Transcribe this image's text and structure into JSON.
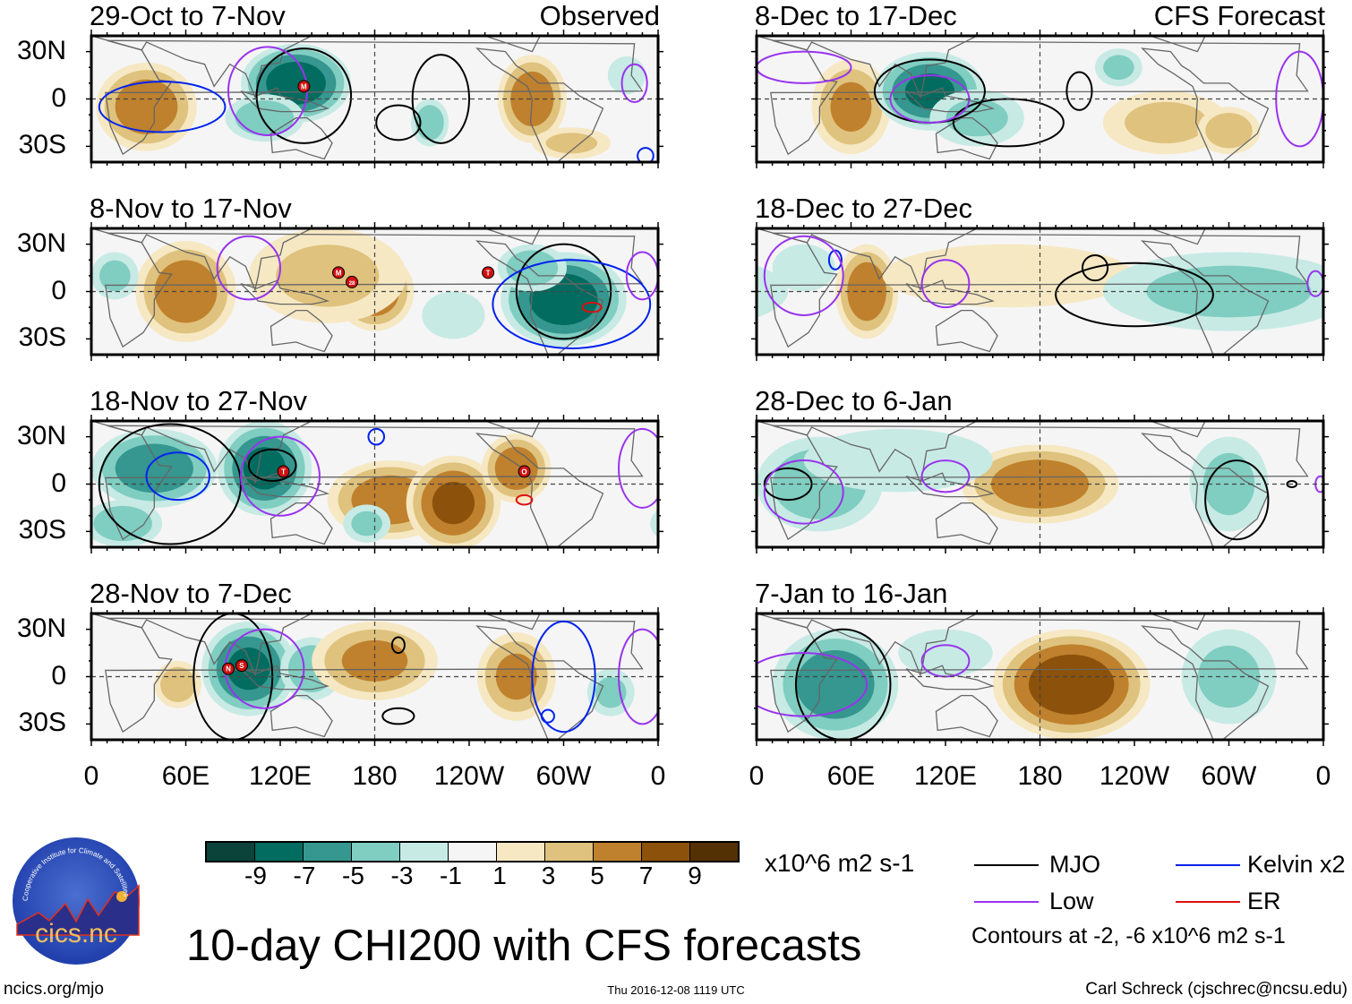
{
  "column_labels": {
    "left": "Observed",
    "right": "CFS Forecast"
  },
  "y_axis_labels": [
    "30N",
    "0",
    "30S"
  ],
  "x_axis_labels": [
    "0",
    "60E",
    "120E",
    "180",
    "120W",
    "60W",
    "0"
  ],
  "panels": [
    {
      "title": "29-Oct to 7-Nov",
      "source": "Observed",
      "anomalies": [
        {
          "lon": 130,
          "lat": 10,
          "rlon": 35,
          "rlat": 25,
          "v": -8
        },
        {
          "lon": 110,
          "lat": -12,
          "rlon": 25,
          "rlat": 15,
          "v": -4
        },
        {
          "lon": 35,
          "lat": -5,
          "rlon": 32,
          "rlat": 28,
          "v": 6
        },
        {
          "lon": 280,
          "lat": 0,
          "rlon": 22,
          "rlat": 28,
          "v": 6
        },
        {
          "lon": 215,
          "lat": -15,
          "rlon": 12,
          "rlat": 15,
          "v": -4
        },
        {
          "lon": 305,
          "lat": -28,
          "rlon": 25,
          "rlat": 10,
          "v": 3
        },
        {
          "lon": 340,
          "lat": 15,
          "rlon": 12,
          "rlat": 12,
          "v": -2
        }
      ],
      "contours": [
        {
          "type": "MJO",
          "lon": 135,
          "lat": 2,
          "rlon": 30,
          "rlat": 30
        },
        {
          "type": "MJO",
          "lon": 195,
          "lat": -15,
          "rlon": 14,
          "rlat": 11
        },
        {
          "type": "MJO",
          "lon": 222,
          "lat": 0,
          "rlon": 18,
          "rlat": 28
        },
        {
          "type": "Kelvin",
          "lon": 45,
          "lat": -5,
          "rlon": 40,
          "rlat": 16
        },
        {
          "type": "Low",
          "lon": 112,
          "lat": 5,
          "rlon": 25,
          "rlat": 28
        },
        {
          "type": "Low",
          "lon": 345,
          "lat": 10,
          "rlon": 8,
          "rlat": 12
        },
        {
          "type": "Kelvin",
          "lon": 352,
          "lat": -36,
          "rlon": 5,
          "rlat": 5
        }
      ],
      "storms": [
        {
          "label": "M",
          "lon": 135,
          "lat": 8
        }
      ]
    },
    {
      "title": "8-Nov to 17-Nov",
      "source": "Observed",
      "anomalies": [
        {
          "lon": 60,
          "lat": 0,
          "rlon": 32,
          "rlat": 32,
          "v": 6
        },
        {
          "lon": 180,
          "lat": 0,
          "rlon": 25,
          "rlat": 25,
          "v": 6
        },
        {
          "lon": 150,
          "lat": 10,
          "rlon": 50,
          "rlat": 30,
          "v": 3
        },
        {
          "lon": 300,
          "lat": -5,
          "rlon": 40,
          "rlat": 30,
          "v": -8
        },
        {
          "lon": 280,
          "lat": 15,
          "rlon": 22,
          "rlat": 15,
          "v": -4
        },
        {
          "lon": 15,
          "lat": 10,
          "rlon": 15,
          "rlat": 15,
          "v": -3
        },
        {
          "lon": 230,
          "lat": -15,
          "rlon": 20,
          "rlat": 15,
          "v": -2
        }
      ],
      "contours": [
        {
          "type": "MJO",
          "lon": 300,
          "lat": 0,
          "rlon": 30,
          "rlat": 30
        },
        {
          "type": "Kelvin",
          "lon": 305,
          "lat": -8,
          "rlon": 50,
          "rlat": 28
        },
        {
          "type": "Low",
          "lon": 100,
          "lat": 15,
          "rlon": 20,
          "rlat": 20
        },
        {
          "type": "Low",
          "lon": 350,
          "lat": 10,
          "rlon": 10,
          "rlat": 15
        },
        {
          "type": "ER",
          "lon": 318,
          "lat": -10,
          "rlon": 6,
          "rlat": 3
        }
      ],
      "storms": [
        {
          "label": "M",
          "lon": 157,
          "lat": 12
        },
        {
          "label": "28",
          "lon": 163,
          "lat": 6
        },
        {
          "label": "T",
          "lon": 252,
          "lat": 12
        }
      ]
    },
    {
      "title": "18-Nov to 27-Nov",
      "source": "Observed",
      "anomalies": [
        {
          "lon": 40,
          "lat": 10,
          "rlon": 40,
          "rlat": 25,
          "v": -6
        },
        {
          "lon": 110,
          "lat": 10,
          "rlon": 30,
          "rlat": 30,
          "v": -7
        },
        {
          "lon": 190,
          "lat": -10,
          "rlon": 40,
          "rlat": 25,
          "v": 6
        },
        {
          "lon": 230,
          "lat": -12,
          "rlon": 30,
          "rlat": 30,
          "v": 7
        },
        {
          "lon": 270,
          "lat": 10,
          "rlon": 22,
          "rlat": 22,
          "v": 6
        },
        {
          "lon": 175,
          "lat": -25,
          "rlon": 15,
          "rlat": 12,
          "v": -3
        },
        {
          "lon": 20,
          "lat": -25,
          "rlon": 25,
          "rlat": 15,
          "v": -4
        }
      ],
      "contours": [
        {
          "type": "MJO",
          "lon": 50,
          "lat": 0,
          "rlon": 45,
          "rlat": 38
        },
        {
          "type": "MJO",
          "lon": 115,
          "lat": 12,
          "rlon": 15,
          "rlat": 10
        },
        {
          "type": "Kelvin",
          "lon": 55,
          "lat": 5,
          "rlon": 20,
          "rlat": 15
        },
        {
          "type": "Kelvin",
          "lon": 181,
          "lat": 30,
          "rlon": 5,
          "rlat": 5
        },
        {
          "type": "Low",
          "lon": 120,
          "lat": 5,
          "rlon": 25,
          "rlat": 25
        },
        {
          "type": "Low",
          "lon": 350,
          "lat": 10,
          "rlon": 15,
          "rlat": 25
        },
        {
          "type": "ER",
          "lon": 275,
          "lat": -10,
          "rlon": 5,
          "rlat": 3
        }
      ],
      "storms": [
        {
          "label": "T",
          "lon": 122,
          "lat": 8
        },
        {
          "label": "O",
          "lon": 275,
          "lat": 8
        }
      ]
    },
    {
      "title": "28-Nov to 7-Dec",
      "source": "Observed",
      "anomalies": [
        {
          "lon": 100,
          "lat": 5,
          "rlon": 30,
          "rlat": 30,
          "v": -7
        },
        {
          "lon": 140,
          "lat": 5,
          "rlon": 20,
          "rlat": 20,
          "v": -4
        },
        {
          "lon": 180,
          "lat": 10,
          "rlon": 40,
          "rlat": 25,
          "v": 5
        },
        {
          "lon": 270,
          "lat": 0,
          "rlon": 25,
          "rlat": 28,
          "v": 5
        },
        {
          "lon": 55,
          "lat": -5,
          "rlon": 15,
          "rlat": 15,
          "v": 4
        },
        {
          "lon": 330,
          "lat": -10,
          "rlon": 15,
          "rlat": 15,
          "v": -3
        }
      ],
      "contours": [
        {
          "type": "MJO",
          "lon": 90,
          "lat": 0,
          "rlon": 25,
          "rlat": 40
        },
        {
          "type": "MJO",
          "lon": 195,
          "lat": -25,
          "rlon": 10,
          "rlat": 5
        },
        {
          "type": "MJO",
          "lon": 195,
          "lat": 20,
          "rlon": 4,
          "rlat": 5
        },
        {
          "type": "Kelvin",
          "lon": 300,
          "lat": 0,
          "rlon": 20,
          "rlat": 35
        },
        {
          "type": "Kelvin",
          "lon": 290,
          "lat": -25,
          "rlon": 4,
          "rlat": 4
        },
        {
          "type": "Low",
          "lon": 110,
          "lat": 5,
          "rlon": 25,
          "rlat": 25
        },
        {
          "type": "Low",
          "lon": 350,
          "lat": 0,
          "rlon": 15,
          "rlat": 30
        }
      ],
      "storms": [
        {
          "label": "N",
          "lon": 87,
          "lat": 5
        },
        {
          "label": "S",
          "lon": 92,
          "lat": 7
        }
      ]
    },
    {
      "title": "8-Dec to 17-Dec",
      "source": "CFS Forecast",
      "anomalies": [
        {
          "lon": 60,
          "lat": -5,
          "rlon": 25,
          "rlat": 30,
          "v": 5
        },
        {
          "lon": 110,
          "lat": 5,
          "rlon": 35,
          "rlat": 25,
          "v": -7
        },
        {
          "lon": 140,
          "lat": -12,
          "rlon": 30,
          "rlat": 18,
          "v": -3
        },
        {
          "lon": 260,
          "lat": -15,
          "rlon": 40,
          "rlat": 20,
          "v": 3
        },
        {
          "lon": 300,
          "lat": -20,
          "rlon": 20,
          "rlat": 15,
          "v": 4
        },
        {
          "lon": 230,
          "lat": 20,
          "rlon": 15,
          "rlat": 12,
          "v": -3
        }
      ],
      "contours": [
        {
          "type": "MJO",
          "lon": 110,
          "lat": 5,
          "rlon": 35,
          "rlat": 20
        },
        {
          "type": "MJO",
          "lon": 160,
          "lat": -15,
          "rlon": 35,
          "rlat": 15
        },
        {
          "type": "MJO",
          "lon": 205,
          "lat": 5,
          "rlon": 8,
          "rlat": 12
        },
        {
          "type": "Low",
          "lon": 110,
          "lat": 0,
          "rlon": 25,
          "rlat": 15
        },
        {
          "type": "Low",
          "lon": 345,
          "lat": 0,
          "rlon": 15,
          "rlat": 30
        },
        {
          "type": "Low",
          "lon": 30,
          "lat": 20,
          "rlon": 30,
          "rlat": 10
        }
      ],
      "storms": []
    },
    {
      "title": "18-Dec to 27-Dec",
      "source": "CFS Forecast",
      "anomalies": [
        {
          "lon": 70,
          "lat": 0,
          "rlon": 20,
          "rlat": 30,
          "v": 6
        },
        {
          "lon": 160,
          "lat": 10,
          "rlon": 80,
          "rlat": 20,
          "v": 2
        },
        {
          "lon": 300,
          "lat": 0,
          "rlon": 80,
          "rlat": 25,
          "v": -3
        },
        {
          "lon": 30,
          "lat": 15,
          "rlon": 20,
          "rlat": 15,
          "v": -2
        }
      ],
      "contours": [
        {
          "type": "MJO",
          "lon": 240,
          "lat": -2,
          "rlon": 50,
          "rlat": 20
        },
        {
          "type": "MJO",
          "lon": 215,
          "lat": 15,
          "rlon": 8,
          "rlat": 8
        },
        {
          "type": "Kelvin",
          "lon": 50,
          "lat": 20,
          "rlon": 4,
          "rlat": 6
        },
        {
          "type": "Low",
          "lon": 120,
          "lat": 5,
          "rlon": 15,
          "rlat": 15
        },
        {
          "type": "Low",
          "lon": 30,
          "lat": 10,
          "rlon": 25,
          "rlat": 25
        },
        {
          "type": "Low",
          "lon": 355,
          "lat": 5,
          "rlon": 5,
          "rlat": 8
        }
      ],
      "storms": []
    },
    {
      "title": "28-Dec to 6-Jan",
      "source": "CFS Forecast",
      "anomalies": [
        {
          "lon": 180,
          "lat": 0,
          "rlon": 50,
          "rlat": 25,
          "v": 6
        },
        {
          "lon": 40,
          "lat": 0,
          "rlon": 40,
          "rlat": 30,
          "v": -4
        },
        {
          "lon": 300,
          "lat": 0,
          "rlon": 25,
          "rlat": 30,
          "v": -3
        },
        {
          "lon": 90,
          "lat": 15,
          "rlon": 60,
          "rlat": 20,
          "v": -2
        }
      ],
      "contours": [
        {
          "type": "MJO",
          "lon": 20,
          "lat": 0,
          "rlon": 15,
          "rlat": 10
        },
        {
          "type": "MJO",
          "lon": 305,
          "lat": -10,
          "rlon": 20,
          "rlat": 25
        },
        {
          "type": "MJO",
          "lon": 340,
          "lat": 0,
          "rlon": 3,
          "rlat": 2
        },
        {
          "type": "Low",
          "lon": 120,
          "lat": 5,
          "rlon": 15,
          "rlat": 10
        },
        {
          "type": "Low",
          "lon": 30,
          "lat": -5,
          "rlon": 25,
          "rlat": 20
        },
        {
          "type": "Low",
          "lon": 358,
          "lat": 0,
          "rlon": 3,
          "rlat": 5
        }
      ],
      "storms": []
    },
    {
      "title": "7-Jan to 16-Jan",
      "source": "CFS Forecast",
      "anomalies": [
        {
          "lon": 200,
          "lat": -5,
          "rlon": 50,
          "rlat": 35,
          "v": 8
        },
        {
          "lon": 50,
          "lat": -5,
          "rlon": 40,
          "rlat": 35,
          "v": -6
        },
        {
          "lon": 300,
          "lat": 0,
          "rlon": 30,
          "rlat": 30,
          "v": -3
        },
        {
          "lon": 120,
          "lat": 15,
          "rlon": 30,
          "rlat": 15,
          "v": -2
        }
      ],
      "contours": [
        {
          "type": "MJO",
          "lon": 55,
          "lat": -5,
          "rlon": 30,
          "rlat": 35
        },
        {
          "type": "Low",
          "lon": 120,
          "lat": 10,
          "rlon": 15,
          "rlat": 10
        },
        {
          "type": "Low",
          "lon": 30,
          "lat": -5,
          "rlon": 40,
          "rlat": 20
        }
      ],
      "storms": []
    }
  ],
  "colorbar": {
    "colors": [
      "#0b433b",
      "#016c5f",
      "#35978f",
      "#80cdc1",
      "#c7eae5",
      "#f5f5f5",
      "#f6e8c3",
      "#dfc27d",
      "#bf812d",
      "#8c510a",
      "#543005"
    ],
    "labels": [
      "-9",
      "-7",
      "-5",
      "-3",
      "-1",
      "1",
      "3",
      "5",
      "7",
      "9"
    ],
    "units": "x10^6 m2 s-1"
  },
  "legend": {
    "items": [
      {
        "label": "MJO",
        "color": "#000000"
      },
      {
        "label": "Kelvin x2",
        "color": "#0022ee"
      },
      {
        "label": "Low",
        "color": "#9933ee"
      },
      {
        "label": "ER",
        "color": "#dd1111"
      }
    ],
    "contours_note": "Contours at -2, -6 x10^6 m2 s-1"
  },
  "title": "10-day CHI200 with CFS forecasts",
  "logo": {
    "name": "cics.nc",
    "ring_text": "Cooperative Institute for Climate and Satellites"
  },
  "footer": {
    "url": "ncics.org/mjo",
    "timestamp": "Thu 2016-12-08 1119 UTC",
    "credit": "Carl Schreck (cjschrec@ncsu.edu)"
  }
}
